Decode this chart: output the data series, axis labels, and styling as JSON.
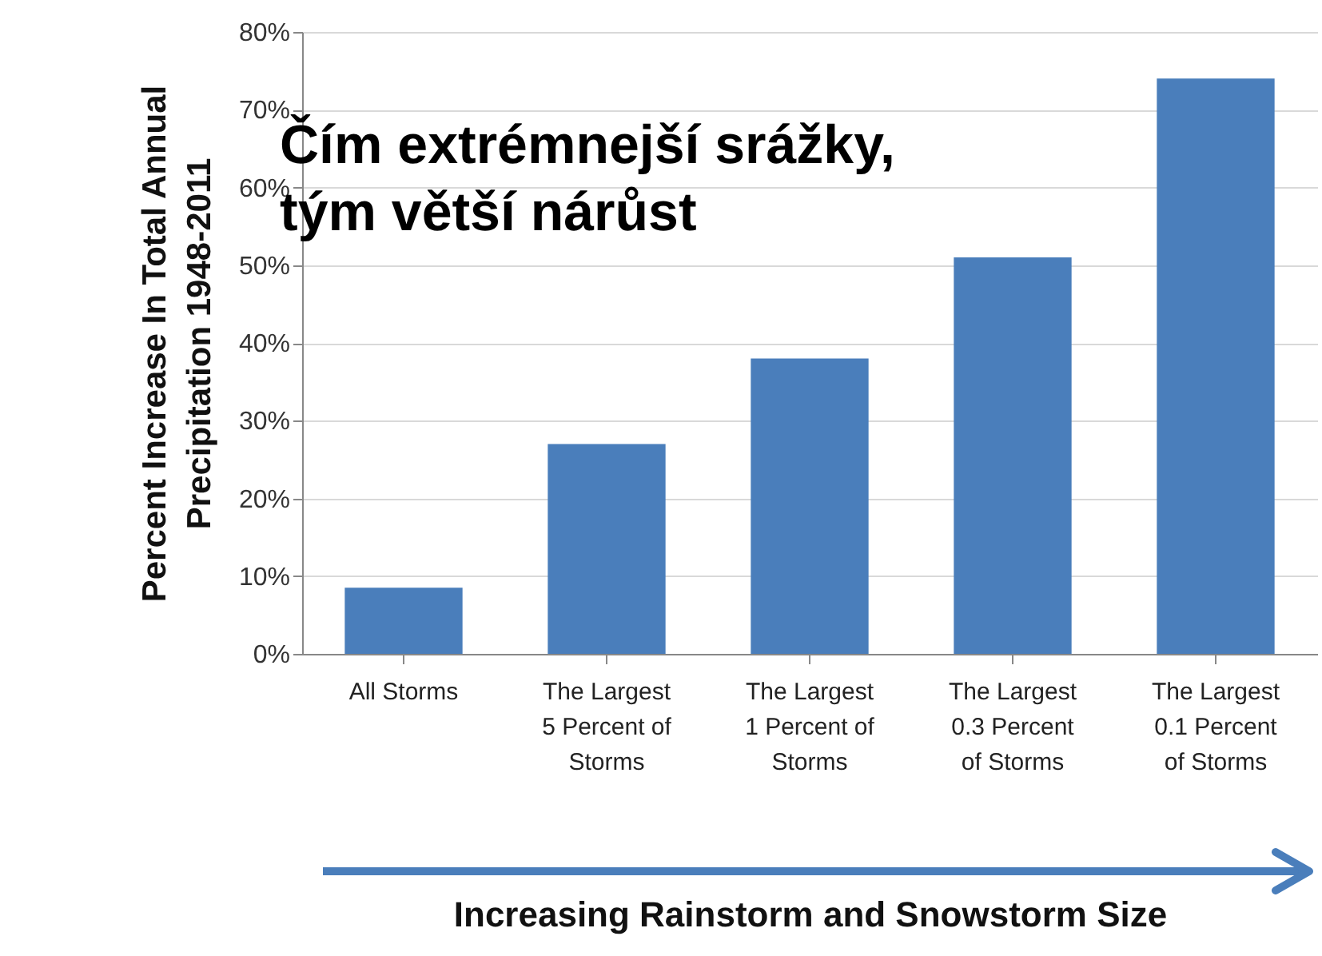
{
  "chart_data": {
    "type": "bar",
    "categories": [
      "All Storms",
      "The Largest\n5 Percent of\nStorms",
      "The Largest\n1 Percent of\nStorms",
      "The Largest\n0.3 Percent\nof Storms",
      "The Largest\n0.1 Percent\nof Storms"
    ],
    "values": [
      8.5,
      27,
      38,
      51,
      74
    ],
    "color": "#4a7ebb",
    "ylabel": "Percent Increase In Total Annual\nPrecipitation 1948-2011",
    "xlabel": "Increasing Rainstorm and Snowstorm Size",
    "ylim": [
      0,
      80
    ],
    "yticks": [
      {
        "value": 0,
        "label": "0%"
      },
      {
        "value": 10,
        "label": "10%"
      },
      {
        "value": 20,
        "label": "20%"
      },
      {
        "value": 30,
        "label": "30%"
      },
      {
        "value": 40,
        "label": "40%"
      },
      {
        "value": 50,
        "label": "50%"
      },
      {
        "value": 60,
        "label": "60%"
      },
      {
        "value": 70,
        "label": "70%"
      },
      {
        "value": 80,
        "label": "80%"
      }
    ],
    "grid": "y",
    "annotations": [
      "Čím extrémnejší srážky,\ntým větší nárůst"
    ]
  }
}
